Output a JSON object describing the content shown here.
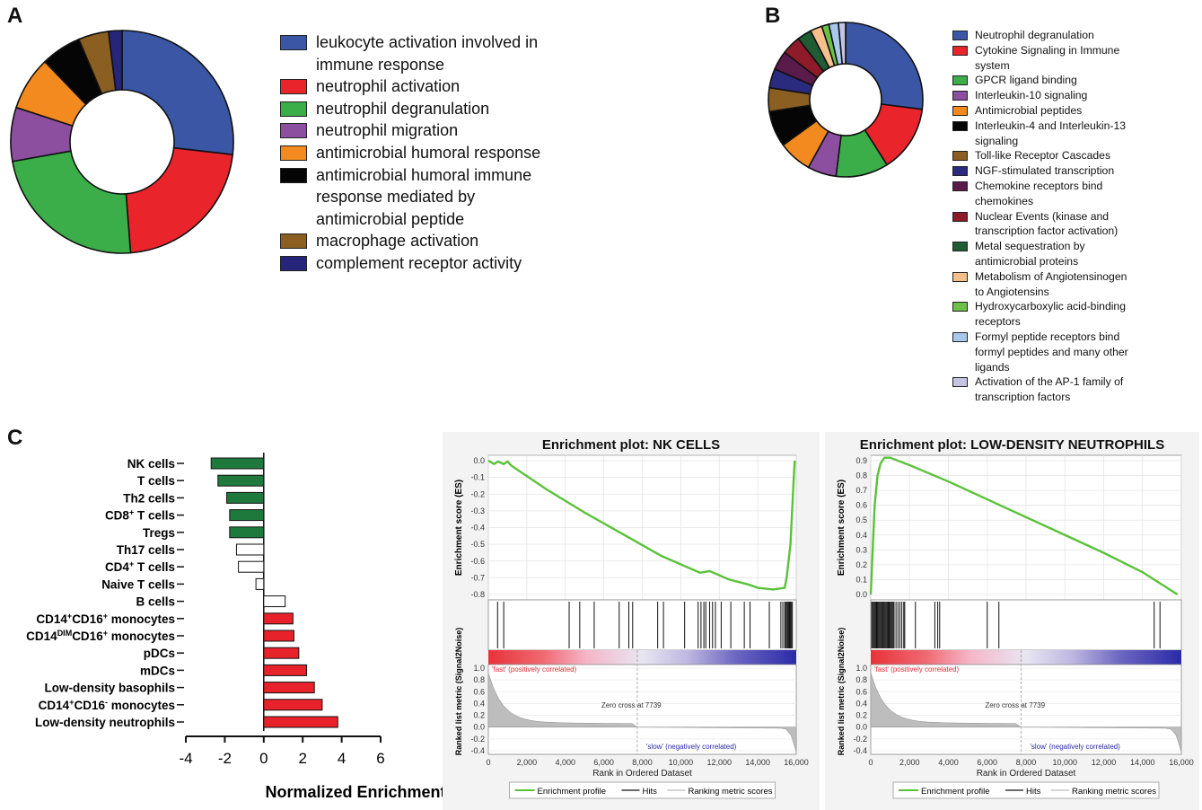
{
  "panels": {
    "a": "A",
    "b": "B",
    "c": "C"
  },
  "chart_data": [
    {
      "type": "pie",
      "panel": "A",
      "donut": true,
      "categories": [
        "leukocyte activation involved in immune response",
        "neutrophil activation",
        "neutrophil degranulation",
        "neutrophil migration",
        "antimicrobial humoral response",
        "antimicrobial humoral immune response mediated by antimicrobial peptide",
        "macrophage activation",
        "complement receptor activity"
      ],
      "values": [
        27.5,
        22.5,
        24,
        8,
        8,
        6,
        4.5,
        2
      ],
      "colors": [
        "#3a56a5",
        "#e9242b",
        "#3bae4a",
        "#8c4fa0",
        "#f38a1f",
        "#050505",
        "#8b5e22",
        "#27257a"
      ],
      "legend_lines": [
        [
          "leukocyte activation involved in",
          "immune response"
        ],
        [
          "neutrophil activation"
        ],
        [
          "neutrophil degranulation"
        ],
        [
          "neutrophil migration"
        ],
        [
          "antimicrobial humoral response"
        ],
        [
          "antimicrobial humoral immune",
          "response mediated by",
          "antimicrobial peptide"
        ],
        [
          "macrophage activation"
        ],
        [
          "complement receptor activity"
        ]
      ]
    },
    {
      "type": "pie",
      "panel": "B",
      "donut": true,
      "categories": [
        "Neutrophil degranulation",
        "Cytokine Signaling in Immune system",
        "GPCR ligand binding",
        "Interleukin-10 signaling",
        "Antimicrobial peptides",
        "Interleukin-4 and Interleukin-13 signaling",
        "Toll-like Receptor Cascades",
        "NGF-stimulated transcription",
        "Chemokine receptors bind chemokines",
        "Nuclear Events (kinase and transcription factor activation)",
        "Metal sequestration by antimicrobial proteins",
        "Metabolism of Angiotensinogen to Angiotensins",
        "Hydroxycarboxylic acid-binding receptors",
        "Formyl peptide receptors bind formyl peptides and many other ligands",
        "Activation of the AP-1 family of transcription factors"
      ],
      "values": [
        27,
        14,
        11,
        6,
        7,
        7.5,
        5,
        4,
        4,
        4,
        3,
        2.5,
        1.5,
        2,
        1.5
      ],
      "colors": [
        "#3a56a5",
        "#e9242b",
        "#3bae4a",
        "#8c4fa0",
        "#f38a1f",
        "#050505",
        "#8b5e22",
        "#2a2a7e",
        "#5a1a4a",
        "#8e1b2a",
        "#1f5b33",
        "#f6c08c",
        "#6cc04a",
        "#a8c8ee",
        "#c3c3e3"
      ],
      "legend_lines": [
        [
          "Neutrophil degranulation"
        ],
        [
          "Cytokine Signaling in Immune",
          "system"
        ],
        [
          "GPCR ligand binding"
        ],
        [
          "Interleukin-10 signaling"
        ],
        [
          "Antimicrobial peptides"
        ],
        [
          "Interleukin-4 and Interleukin-13",
          "signaling"
        ],
        [
          "Toll-like Receptor Cascades"
        ],
        [
          "NGF-stimulated transcription"
        ],
        [
          "Chemokine receptors bind",
          "chemokines"
        ],
        [
          "Nuclear Events (kinase and",
          "transcription factor activation)"
        ],
        [
          "Metal sequestration by",
          "antimicrobial proteins"
        ],
        [
          "Metabolism of Angiotensinogen",
          "to Angiotensins"
        ],
        [
          "Hydroxycarboxylic acid-binding",
          "receptors"
        ],
        [
          "Formyl peptide receptors bind",
          "formyl peptides and many other",
          "ligands"
        ],
        [
          "Activation of the AP-1 family of",
          "transcription factors"
        ]
      ]
    },
    {
      "type": "bar",
      "panel": "C",
      "orientation": "horizontal",
      "categories": [
        {
          "parts": [
            [
              "NK cells",
              ""
            ]
          ]
        },
        {
          "parts": [
            [
              "T cells",
              ""
            ]
          ]
        },
        {
          "parts": [
            [
              "Th2 cells",
              ""
            ]
          ]
        },
        {
          "parts": [
            [
              "CD8",
              ""
            ],
            [
              "+",
              "sup"
            ],
            [
              " T cells",
              ""
            ]
          ]
        },
        {
          "parts": [
            [
              "Tregs",
              ""
            ]
          ]
        },
        {
          "parts": [
            [
              "Th17 cells",
              ""
            ]
          ]
        },
        {
          "parts": [
            [
              "CD4",
              ""
            ],
            [
              "+",
              "sup"
            ],
            [
              " T cells",
              ""
            ]
          ]
        },
        {
          "parts": [
            [
              "Naive T cells",
              ""
            ]
          ]
        },
        {
          "parts": [
            [
              "B cells",
              ""
            ]
          ]
        },
        {
          "parts": [
            [
              "CD14",
              ""
            ],
            [
              "+",
              "sup"
            ],
            [
              "CD16",
              ""
            ],
            [
              "+",
              "sup"
            ],
            [
              " monocytes",
              ""
            ]
          ]
        },
        {
          "parts": [
            [
              "CD14",
              ""
            ],
            [
              "DIM",
              "sup"
            ],
            [
              "CD16",
              ""
            ],
            [
              "+",
              "sup"
            ],
            [
              " monocytes",
              ""
            ]
          ]
        },
        {
          "parts": [
            [
              "pDCs",
              ""
            ]
          ]
        },
        {
          "parts": [
            [
              "mDCs",
              ""
            ]
          ]
        },
        {
          "parts": [
            [
              "Low-density basophils",
              ""
            ]
          ]
        },
        {
          "parts": [
            [
              "CD14",
              ""
            ],
            [
              "+",
              "sup"
            ],
            [
              "CD16",
              ""
            ],
            [
              "-",
              "sup"
            ],
            [
              " monocytes",
              ""
            ]
          ]
        },
        {
          "parts": [
            [
              "Low-density neutrophils",
              ""
            ]
          ]
        }
      ],
      "values": [
        -2.7,
        -2.35,
        -1.9,
        -1.75,
        -1.75,
        -1.4,
        -1.3,
        -0.4,
        1.1,
        1.5,
        1.55,
        1.8,
        2.2,
        2.6,
        3.0,
        3.8
      ],
      "fill": [
        "#1e7a3c",
        "#1e7a3c",
        "#1e7a3c",
        "#1e7a3c",
        "#1e7a3c",
        "#ffffff",
        "#ffffff",
        "#ffffff",
        "#ffffff",
        "#e8222a",
        "#e8222a",
        "#e8222a",
        "#e8222a",
        "#e8222a",
        "#e8222a",
        "#e8222a"
      ],
      "xlim": [
        -4,
        6
      ],
      "xticks": [
        "-4",
        "-2",
        "0",
        "2",
        "4",
        "6"
      ],
      "xlabel": "Normalized Enrichment Score"
    },
    {
      "type": "line",
      "panel": "C",
      "title": "Enrichment plot: NK CELLS",
      "ylabel": "Enrichment score (ES)",
      "xlabel": "Rank in Ordered Dataset",
      "ylim": [
        -0.8,
        0.0
      ],
      "yticks": [
        "0.0",
        "-0.1",
        "-0.2",
        "-0.3",
        "-0.4",
        "-0.5",
        "-0.6",
        "-0.7",
        "-0.8"
      ],
      "xlim": [
        0,
        16000
      ],
      "xticks": [
        "0",
        "2,000",
        "4,000",
        "6,000",
        "8,000",
        "10,000",
        "12,000",
        "14,000",
        "16,000"
      ],
      "es_curve": [
        [
          0,
          0.0
        ],
        [
          300,
          -0.02
        ],
        [
          500,
          -0.005
        ],
        [
          800,
          -0.02
        ],
        [
          1000,
          -0.005
        ],
        [
          1200,
          -0.03
        ],
        [
          3000,
          -0.17
        ],
        [
          5000,
          -0.31
        ],
        [
          7000,
          -0.44
        ],
        [
          9000,
          -0.57
        ],
        [
          11000,
          -0.67
        ],
        [
          11500,
          -0.66
        ],
        [
          12500,
          -0.71
        ],
        [
          13500,
          -0.74
        ],
        [
          14000,
          -0.76
        ],
        [
          14800,
          -0.77
        ],
        [
          15400,
          -0.76
        ],
        [
          15500,
          -0.7
        ],
        [
          15700,
          -0.5
        ],
        [
          15850,
          -0.15
        ],
        [
          15920,
          0.0
        ]
      ],
      "hits": [
        480,
        800,
        4200,
        4750,
        5500,
        6800,
        7300,
        7500,
        8800,
        9100,
        10200,
        10900,
        11050,
        11200,
        11300,
        11500,
        11650,
        11800,
        12100,
        12600,
        13300,
        13600,
        14600,
        15200,
        15300,
        15400,
        15450,
        15500,
        15550,
        15600,
        15650,
        15700,
        15750,
        15800
      ],
      "metric_ylim": [
        -0.4,
        1.0
      ],
      "metric_yticks": [
        "1.0",
        "0.8",
        "0.6",
        "0.4",
        "0.2",
        "0.0",
        "-0.2",
        "-0.4"
      ],
      "ylabel2": "Ranked list metric (Signal2Noise)",
      "pos_label": "'fast' (positively correlated)",
      "neg_label": "'slow' (negatively correlated)",
      "zero_cross": "Zero cross at 7739",
      "legend": [
        "Enrichment profile",
        "Hits",
        "Ranking metric scores"
      ]
    },
    {
      "type": "line",
      "panel": "C",
      "title": "Enrichment plot: LOW-DENSITY NEUTROPHILS",
      "ylabel": "Enrichment score (ES)",
      "xlabel": "Rank in Ordered Dataset",
      "ylim": [
        0.0,
        0.9
      ],
      "yticks": [
        "0.9",
        "0.8",
        "0.7",
        "0.6",
        "0.5",
        "0.4",
        "0.3",
        "0.2",
        "0.1",
        "0.0"
      ],
      "xlim": [
        0,
        16000
      ],
      "xticks": [
        "0",
        "2,000",
        "4,000",
        "6,000",
        "8,000",
        "10,000",
        "12,000",
        "14,000",
        "16,000"
      ],
      "es_curve": [
        [
          0,
          0.0
        ],
        [
          100,
          0.3
        ],
        [
          200,
          0.6
        ],
        [
          350,
          0.8
        ],
        [
          500,
          0.88
        ],
        [
          700,
          0.92
        ],
        [
          1000,
          0.92
        ],
        [
          2000,
          0.87
        ],
        [
          4000,
          0.76
        ],
        [
          6000,
          0.64
        ],
        [
          8000,
          0.52
        ],
        [
          10000,
          0.4
        ],
        [
          12000,
          0.28
        ],
        [
          14000,
          0.15
        ],
        [
          15800,
          0.0
        ]
      ],
      "hits": [
        50,
        100,
        150,
        200,
        250,
        300,
        350,
        400,
        450,
        500,
        550,
        600,
        650,
        700,
        750,
        800,
        850,
        900,
        950,
        1000,
        1050,
        1100,
        1150,
        1200,
        1300,
        1400,
        1500,
        1600,
        1700,
        1750,
        2300,
        3300,
        3450,
        3550,
        6000,
        6600,
        14600,
        14900
      ],
      "metric_ylim": [
        -0.4,
        1.0
      ],
      "metric_yticks": [
        "1.0",
        "0.8",
        "0.6",
        "0.4",
        "0.2",
        "0.0",
        "-0.2",
        "-0.4"
      ],
      "ylabel2": "Ranked list metric (Signal2Noise)",
      "pos_label": "'fast' (positively correlated)",
      "neg_label": "'slow' (negatively correlated)",
      "zero_cross": "Zero cross at 7739",
      "legend": [
        "Enrichment profile",
        "Hits",
        "Ranking metric scores"
      ]
    }
  ]
}
